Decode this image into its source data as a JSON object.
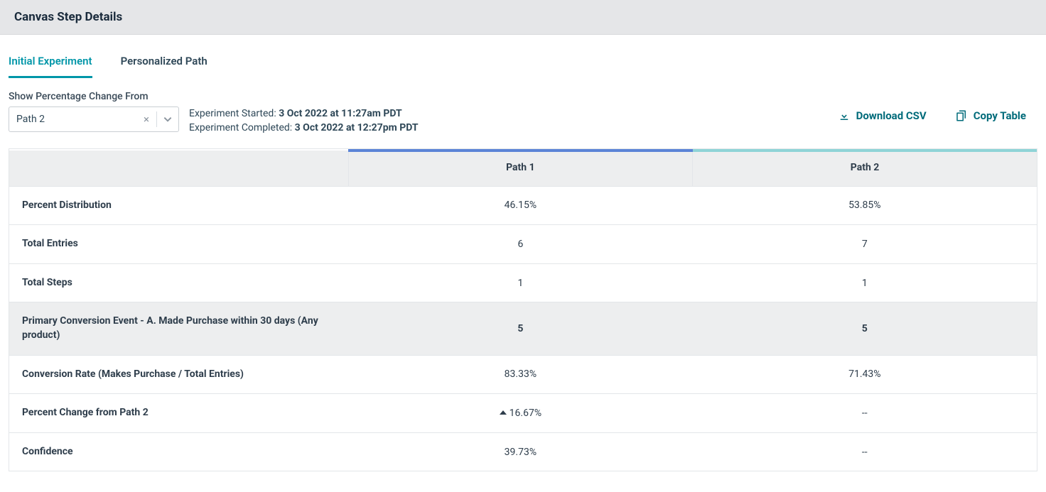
{
  "header": {
    "title": "Canvas Step Details"
  },
  "tabs": [
    {
      "label": "Initial Experiment",
      "active": true
    },
    {
      "label": "Personalized Path",
      "active": false
    }
  ],
  "controls": {
    "label": "Show Percentage Change From",
    "select_value": "Path 2"
  },
  "meta": {
    "started_label": "Experiment Started: ",
    "started_value": "3 Oct 2022 at 11:27am PDT",
    "completed_label": "Experiment Completed: ",
    "completed_value": "3 Oct 2022 at 12:27pm PDT"
  },
  "actions": {
    "download": "Download CSV",
    "copy": "Copy Table"
  },
  "table": {
    "columns": [
      "",
      "Path 1",
      "Path 2"
    ],
    "accent_colors": {
      "path1": "#5b84d7",
      "path2": "#8fd4d7"
    },
    "rows": [
      {
        "metric": "Percent Distribution",
        "path1": "46.15%",
        "path2": "53.85%",
        "highlight": false
      },
      {
        "metric": "Total Entries",
        "path1": "6",
        "path2": "7",
        "highlight": false
      },
      {
        "metric": "Total Steps",
        "path1": "1",
        "path2": "1",
        "highlight": false
      },
      {
        "metric": "Primary Conversion Event - A. Made Purchase within 30 days (Any product)",
        "path1": "5",
        "path2": "5",
        "highlight": true
      },
      {
        "metric": "Conversion Rate (Makes Purchase / Total Entries)",
        "path1": "83.33%",
        "path2": "71.43%",
        "highlight": false
      },
      {
        "metric": "Percent Change from Path 2",
        "path1": "16.67%",
        "path1_delta": "up",
        "path2": "--",
        "highlight": false
      },
      {
        "metric": "Confidence",
        "path1": "39.73%",
        "path2": "--",
        "highlight": false
      }
    ]
  }
}
